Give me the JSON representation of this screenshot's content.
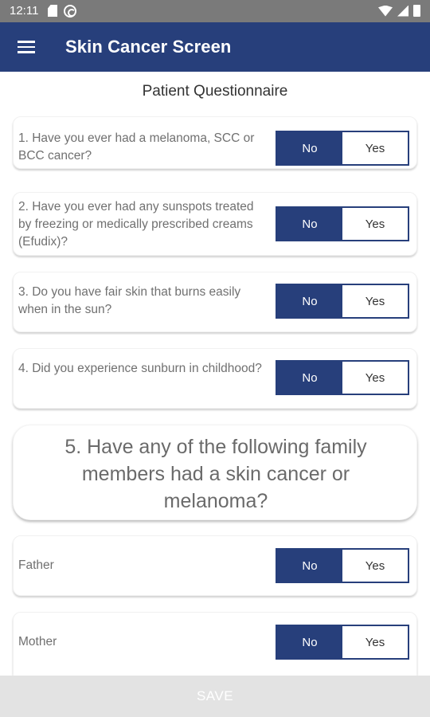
{
  "status_bar": {
    "time": "12:11"
  },
  "app_bar": {
    "title": "Skin Cancer Screen"
  },
  "section_title": "Patient Questionnaire",
  "questions": [
    {
      "text": "1. Have you ever had a melanoma, SCC or BCC cancer?",
      "no": "No",
      "yes": "Yes",
      "selected": "No"
    },
    {
      "text": "2. Have you ever had any sunspots treated by freezing or medically prescribed creams (Efudix)?",
      "no": "No",
      "yes": "Yes",
      "selected": "No"
    },
    {
      "text": "3. Do you have fair skin that burns easily when in the sun?",
      "no": "No",
      "yes": "Yes",
      "selected": "No"
    },
    {
      "text": "4. Did you experience sunburn in childhood?",
      "no": "No",
      "yes": "Yes",
      "selected": "No"
    }
  ],
  "family_question": "5. Have any of the following family members had a skin cancer or melanoma?",
  "family_members": [
    {
      "label": "Father",
      "no": "No",
      "yes": "Yes",
      "selected": "No"
    },
    {
      "label": "Mother",
      "no": "No",
      "yes": "Yes",
      "selected": "No"
    }
  ],
  "footer": {
    "save_label": "SAVE"
  },
  "colors": {
    "primary": "#273f7b",
    "status_bar": "#7a7a7a",
    "footer": "#e3e3e3"
  }
}
